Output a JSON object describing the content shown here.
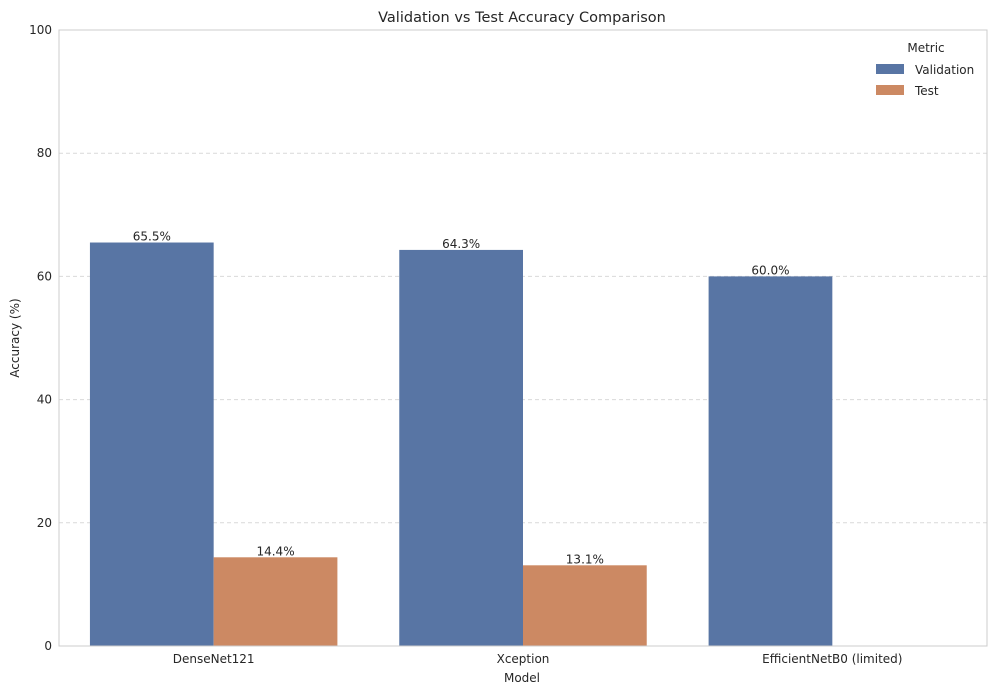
{
  "chart_data": {
    "type": "bar",
    "title": "Validation vs Test Accuracy Comparison",
    "xlabel": "Model",
    "ylabel": "Accuracy (%)",
    "categories": [
      "DenseNet121",
      "Xception",
      "EfficientNetB0 (limited)"
    ],
    "series": [
      {
        "name": "Validation",
        "color": "#5875a4",
        "values": [
          65.5,
          64.3,
          60.0
        ],
        "labels": [
          "65.5%",
          "64.3%",
          "60.0%"
        ]
      },
      {
        "name": "Test",
        "color": "#cc8963",
        "values": [
          14.4,
          13.1,
          null
        ],
        "labels": [
          "14.4%",
          "13.1%",
          ""
        ]
      }
    ],
    "ylim": [
      0,
      100
    ],
    "yticks": [
      0,
      20,
      40,
      60,
      80,
      100
    ],
    "grid": "y-dashed",
    "legend": {
      "title": "Metric",
      "position": "top-right"
    }
  }
}
